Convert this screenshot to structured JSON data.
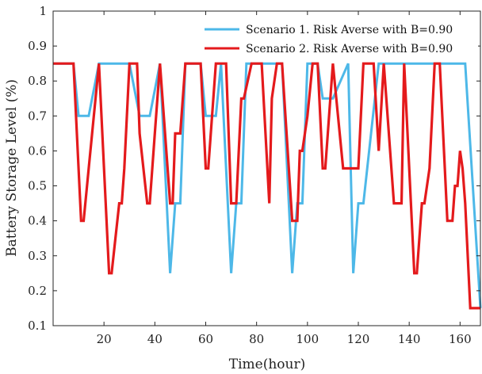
{
  "chart_data": {
    "type": "line",
    "xlabel": "Time(hour)",
    "ylabel": "Battery Storage Level (%)",
    "xlim": [
      0,
      168
    ],
    "ylim": [
      0.1,
      1.0
    ],
    "xticks": [
      20,
      40,
      60,
      80,
      100,
      120,
      140,
      160
    ],
    "yticks": [
      0.1,
      0.2,
      0.3,
      0.4,
      0.5,
      0.6,
      0.7,
      0.8,
      0.9,
      1
    ],
    "grid": false,
    "legend_position": "top-right",
    "series": [
      {
        "name": "Scenario 1. Risk Averse with B=0.90",
        "color": "#4db8e8",
        "x": [
          0,
          8,
          10,
          14,
          18,
          30,
          34,
          38,
          42,
          46,
          48,
          50,
          52,
          58,
          60,
          64,
          66,
          70,
          72,
          74,
          76,
          82,
          88,
          90,
          94,
          96,
          98,
          100,
          104,
          106,
          110,
          116,
          118,
          120,
          122,
          128,
          138,
          142,
          152,
          162,
          168
        ],
        "y": [
          0.85,
          0.85,
          0.7,
          0.7,
          0.85,
          0.85,
          0.7,
          0.7,
          0.85,
          0.25,
          0.45,
          0.45,
          0.85,
          0.85,
          0.7,
          0.7,
          0.85,
          0.25,
          0.45,
          0.45,
          0.85,
          0.85,
          0.85,
          0.85,
          0.25,
          0.45,
          0.45,
          0.85,
          0.85,
          0.75,
          0.75,
          0.85,
          0.25,
          0.45,
          0.45,
          0.85,
          0.85,
          0.85,
          0.85,
          0.85,
          0.15
        ]
      },
      {
        "name": "Scenario 2. Risk Averse with B=0.90",
        "color": "#e41a1c",
        "x": [
          0,
          4,
          8,
          11,
          12,
          14,
          18,
          22,
          23,
          26,
          27,
          28,
          30,
          33,
          34,
          37,
          38,
          40,
          42,
          46,
          47,
          48,
          50,
          52,
          58,
          60,
          61,
          64,
          68,
          70,
          72,
          74,
          75,
          78,
          82,
          85,
          86,
          88,
          90,
          94,
          96,
          97,
          98,
          100,
          102,
          104,
          106,
          107,
          108,
          110,
          114,
          115,
          118,
          120,
          122,
          126,
          128,
          130,
          134,
          137,
          138,
          142,
          143,
          145,
          146,
          148,
          150,
          152,
          154,
          155,
          157,
          158,
          159,
          160,
          161,
          162,
          164,
          166,
          168
        ],
        "y": [
          0.85,
          0.85,
          0.85,
          0.4,
          0.4,
          0.55,
          0.85,
          0.25,
          0.25,
          0.45,
          0.45,
          0.55,
          0.85,
          0.85,
          0.65,
          0.45,
          0.45,
          0.65,
          0.85,
          0.45,
          0.45,
          0.65,
          0.65,
          0.85,
          0.85,
          0.55,
          0.55,
          0.85,
          0.85,
          0.45,
          0.45,
          0.75,
          0.75,
          0.85,
          0.85,
          0.45,
          0.75,
          0.85,
          0.85,
          0.4,
          0.4,
          0.6,
          0.6,
          0.7,
          0.85,
          0.85,
          0.55,
          0.55,
          0.65,
          0.85,
          0.55,
          0.55,
          0.55,
          0.55,
          0.85,
          0.85,
          0.6,
          0.85,
          0.45,
          0.45,
          0.85,
          0.25,
          0.25,
          0.45,
          0.45,
          0.55,
          0.85,
          0.85,
          0.55,
          0.4,
          0.4,
          0.5,
          0.5,
          0.6,
          0.55,
          0.45,
          0.15,
          0.15,
          0.15
        ]
      }
    ]
  }
}
